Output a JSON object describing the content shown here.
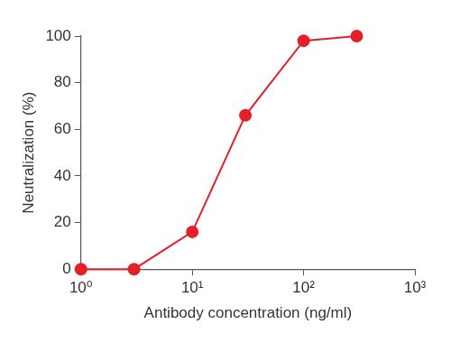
{
  "chart_data": {
    "type": "line",
    "x_label": "Antibody concentration (ng/ml)",
    "y_label": "Neutralization (%)",
    "x": [
      1,
      3,
      10,
      30,
      100,
      300
    ],
    "values": [
      0,
      0,
      16,
      66,
      98,
      100
    ],
    "color": "#e3202a",
    "marker": "circle",
    "line_style": "solid",
    "log": "x",
    "xlim": [
      1,
      1000
    ],
    "xticks": [
      {
        "value": 1,
        "label": "10⁰"
      },
      {
        "value": 10,
        "label": "10¹"
      },
      {
        "value": 100,
        "label": "10²"
      },
      {
        "value": 1000,
        "label": "10³"
      }
    ],
    "ylim": [
      0,
      100
    ],
    "yticks": [
      0,
      20,
      40,
      60,
      80,
      100
    ],
    "grid": false
  }
}
